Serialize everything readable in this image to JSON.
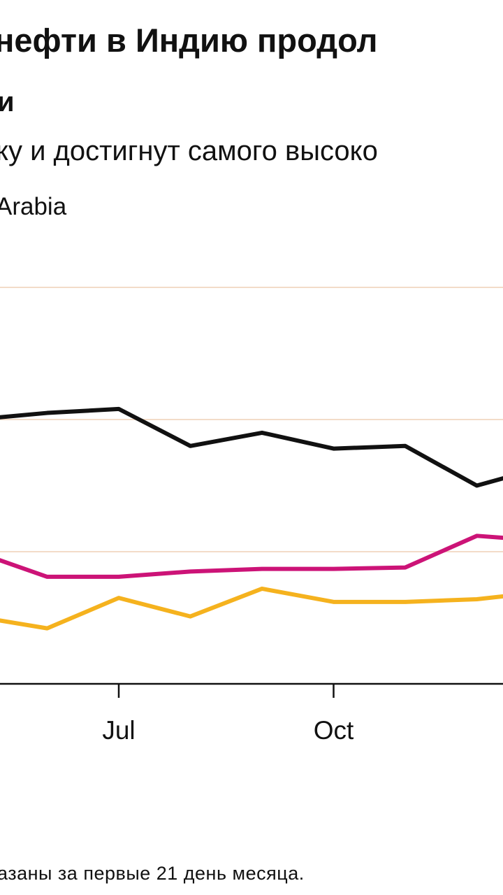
{
  "header": {
    "title": "нефти в Индию продол",
    "title_line2": "и",
    "subtitle": "ку и достигнут самого высоко",
    "legend_text": "Arabia"
  },
  "footnote": "азаны за первые 21 день месяца.",
  "chart_data": {
    "type": "line",
    "title": "нефти в Индию продол",
    "x_tick_labels": [
      "Jul",
      "Oct"
    ],
    "x_index_range": [
      0,
      7
    ],
    "ylim": [
      0,
      3
    ],
    "grid": true,
    "legend": [
      "Arabia"
    ],
    "series": [
      {
        "color": "#111111",
        "values": [
          2.0,
          2.05,
          2.08,
          1.8,
          1.9,
          1.78,
          1.8,
          1.5,
          1.65
        ]
      },
      {
        "color": "#cc1377",
        "values": [
          1.0,
          0.81,
          0.81,
          0.85,
          0.87,
          0.87,
          0.88,
          1.12,
          1.08
        ]
      },
      {
        "color": "#f5b21e",
        "values": [
          0.51,
          0.42,
          0.65,
          0.51,
          0.72,
          0.62,
          0.62,
          0.64,
          0.7
        ]
      }
    ]
  }
}
